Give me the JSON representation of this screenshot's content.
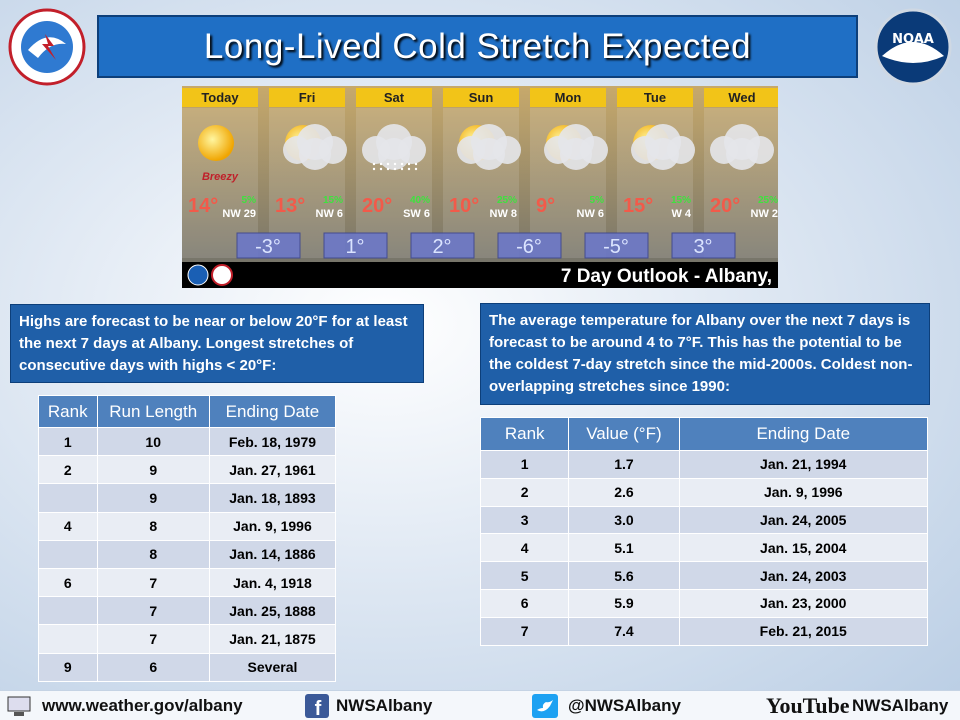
{
  "header": {
    "title": "Long-Lived Cold Stretch Expected"
  },
  "forecast": {
    "days": [
      {
        "name": "Today",
        "high": "14°",
        "pop": "5%",
        "wind": "NW 29",
        "note": "Breezy"
      },
      {
        "name": "Fri",
        "high": "13°",
        "pop": "15%",
        "wind": "NW 6"
      },
      {
        "name": "Sat",
        "high": "20°",
        "pop": "40%",
        "wind": "SW 6"
      },
      {
        "name": "Sun",
        "high": "10°",
        "pop": "25%",
        "wind": "NW 8"
      },
      {
        "name": "Mon",
        "high": "9°",
        "pop": "5%",
        "wind": "NW 6"
      },
      {
        "name": "Tue",
        "high": "15°",
        "pop": "15%",
        "wind": "W 4"
      },
      {
        "name": "Wed",
        "high": "20°",
        "pop": "25%",
        "wind": "NW 2"
      }
    ],
    "lows": [
      "-3°",
      "1°",
      "2°",
      "-6°",
      "-5°",
      "3°"
    ],
    "outlook": "7 Day Outlook - Albany,"
  },
  "left": {
    "text": "Highs are forecast to be near or below 20°F for at least the next 7 days at Albany. Longest stretches of consecutive days with highs < 20°F:",
    "table": {
      "header": [
        "Rank",
        "Run Length",
        "Ending Date"
      ],
      "rows": [
        [
          "1",
          "10",
          "Feb. 18, 1979"
        ],
        [
          "2",
          "9",
          "Jan. 27, 1961"
        ],
        [
          null,
          "9",
          "Jan. 18, 1893"
        ],
        [
          "4",
          "8",
          "Jan. 9, 1996"
        ],
        [
          null,
          "8",
          "Jan. 14, 1886"
        ],
        [
          "6",
          "7",
          "Jan. 4, 1918"
        ],
        [
          null,
          "7",
          "Jan. 25, 1888"
        ],
        [
          null,
          "7",
          "Jan. 21, 1875"
        ],
        [
          "9",
          "6",
          "Several"
        ]
      ]
    }
  },
  "right": {
    "text": "The average temperature for Albany over the next 7 days is forecast to be around 4 to 7°F.  This has the potential to be the coldest 7-day stretch since the mid-2000s. Coldest non-overlapping stretches since 1990:",
    "table": {
      "header": [
        "Rank",
        "Value (°F)",
        "Ending Date"
      ],
      "rows": [
        [
          "1",
          "1.7",
          "Jan. 21, 1994"
        ],
        [
          "2",
          "2.6",
          "Jan. 9, 1996"
        ],
        [
          "3",
          "3.0",
          "Jan. 24, 2005"
        ],
        [
          "4",
          "5.1",
          "Jan. 15, 2004"
        ],
        [
          "5",
          "5.6",
          "Jan. 24, 2003"
        ],
        [
          "6",
          "5.9",
          "Jan. 23, 2000"
        ],
        [
          "7",
          "7.4",
          "Feb. 21, 2015"
        ]
      ]
    }
  },
  "footer": {
    "website": "www.weather.gov/albany",
    "facebook": "NWSAlbany",
    "twitter": "@NWSAlbany",
    "youtube_logo": "YouTube",
    "youtube": "NWSAlbany"
  }
}
